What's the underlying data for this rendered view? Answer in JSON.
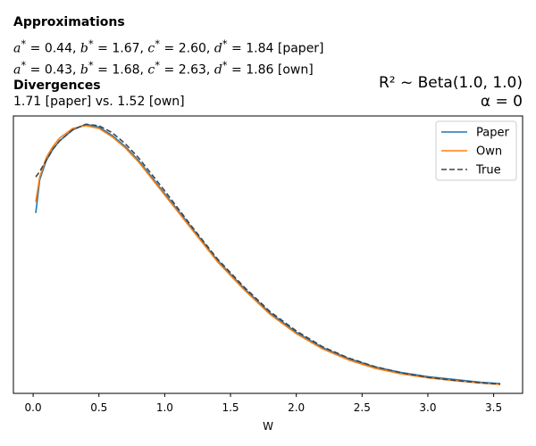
{
  "header": {
    "approx_title": "Approximations",
    "paper_params": "a* = 0.44, b* = 1.67, c* = 2.60, d* = 1.84 [paper]",
    "own_params": "a* = 0.43, b* = 1.68, c* = 2.63, d* = 1.86 [own]",
    "div_title": "Divergences",
    "div_values": "1.71 [paper] vs. 1.52 [own]",
    "dist_label": "R² ~  Beta(1.0, 1.0)",
    "alpha_label": "α = 0"
  },
  "params": {
    "paper": {
      "a": "0.44",
      "b": "1.67",
      "c": "2.60",
      "d": "1.84",
      "tag": "[paper]"
    },
    "own": {
      "a": "0.43",
      "b": "1.68",
      "c": "2.63",
      "d": "1.86",
      "tag": "[own]"
    }
  },
  "chart_data": {
    "type": "line",
    "xlabel": "W",
    "ylabel": "",
    "xlim": [
      -0.15,
      3.72
    ],
    "ylim": [
      0.0,
      1.0
    ],
    "xticks": [
      "0.0",
      "0.5",
      "1.0",
      "1.5",
      "2.0",
      "2.5",
      "3.0",
      "3.5"
    ],
    "yticks_visible": false,
    "grid": false,
    "legend_position": "top-right",
    "colors": {
      "paper": "#1f77b4",
      "own": "#ff7f0e",
      "true": "#444444"
    },
    "series": [
      {
        "name": "Paper",
        "style": "solid",
        "x": [
          0.02,
          0.05,
          0.1,
          0.15,
          0.2,
          0.3,
          0.4,
          0.5,
          0.6,
          0.7,
          0.8,
          0.9,
          1.0,
          1.2,
          1.4,
          1.6,
          1.8,
          2.0,
          2.2,
          2.4,
          2.6,
          2.8,
          3.0,
          3.2,
          3.4,
          3.55
        ],
        "y": [
          0.65,
          0.77,
          0.84,
          0.88,
          0.91,
          0.95,
          0.97,
          0.96,
          0.93,
          0.89,
          0.84,
          0.78,
          0.72,
          0.6,
          0.48,
          0.38,
          0.29,
          0.22,
          0.165,
          0.125,
          0.095,
          0.075,
          0.06,
          0.05,
          0.04,
          0.035
        ]
      },
      {
        "name": "Own",
        "style": "solid",
        "x": [
          0.02,
          0.05,
          0.1,
          0.15,
          0.2,
          0.3,
          0.4,
          0.5,
          0.6,
          0.7,
          0.8,
          0.9,
          1.0,
          1.2,
          1.4,
          1.6,
          1.8,
          2.0,
          2.2,
          2.4,
          2.6,
          2.8,
          3.0,
          3.2,
          3.4,
          3.55
        ],
        "y": [
          0.69,
          0.78,
          0.85,
          0.89,
          0.92,
          0.955,
          0.965,
          0.955,
          0.925,
          0.885,
          0.835,
          0.775,
          0.715,
          0.595,
          0.475,
          0.375,
          0.285,
          0.215,
          0.16,
          0.12,
          0.09,
          0.07,
          0.056,
          0.046,
          0.037,
          0.032
        ]
      },
      {
        "name": "True",
        "style": "dashed",
        "x": [
          0.02,
          0.05,
          0.1,
          0.15,
          0.2,
          0.3,
          0.4,
          0.5,
          0.6,
          0.7,
          0.8,
          0.9,
          1.0,
          1.2,
          1.4,
          1.6,
          1.8,
          2.0,
          2.2,
          2.4,
          2.6,
          2.8,
          3.0,
          3.2,
          3.4,
          3.55
        ],
        "y": [
          0.78,
          0.8,
          0.84,
          0.88,
          0.91,
          0.95,
          0.97,
          0.965,
          0.94,
          0.9,
          0.85,
          0.79,
          0.73,
          0.605,
          0.485,
          0.385,
          0.295,
          0.225,
          0.168,
          0.127,
          0.096,
          0.074,
          0.058,
          0.047,
          0.038,
          0.033
        ]
      }
    ]
  }
}
